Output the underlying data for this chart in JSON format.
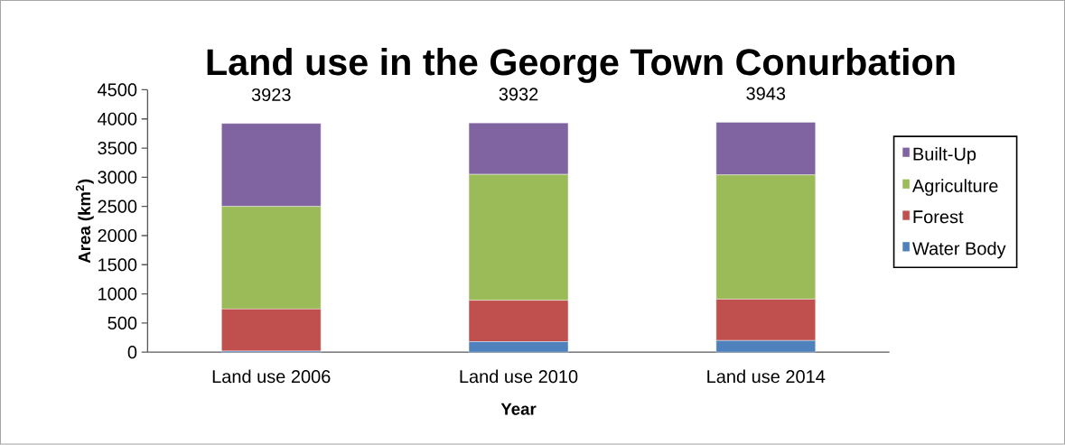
{
  "chart_data": {
    "type": "bar",
    "stacked": true,
    "title": "Land use in the George Town Conurbation",
    "xlabel": "Year",
    "ylabel": "Area (km$^{2}$)",
    "categories": [
      "Land use 2006",
      "Land use 2010",
      "Land use 2014"
    ],
    "series": [
      {
        "name": "Water Body",
        "color": "#4f81bd",
        "values": [
          20,
          180,
          200
        ]
      },
      {
        "name": "Forest",
        "color": "#c0504d",
        "values": [
          720,
          710,
          710
        ]
      },
      {
        "name": "Agriculture",
        "color": "#9bbb59",
        "values": [
          1760,
          2160,
          2130
        ]
      },
      {
        "name": "Built-Up",
        "color": "#8064a2",
        "values": [
          1423,
          882,
          903
        ]
      }
    ],
    "totals": [
      "3923",
      "3932",
      "3943"
    ],
    "ylim": [
      0,
      4500
    ],
    "yticks": [
      0,
      500,
      1000,
      1500,
      2000,
      2500,
      3000,
      3500,
      4000,
      4500
    ],
    "legend": "right",
    "grid": false
  }
}
